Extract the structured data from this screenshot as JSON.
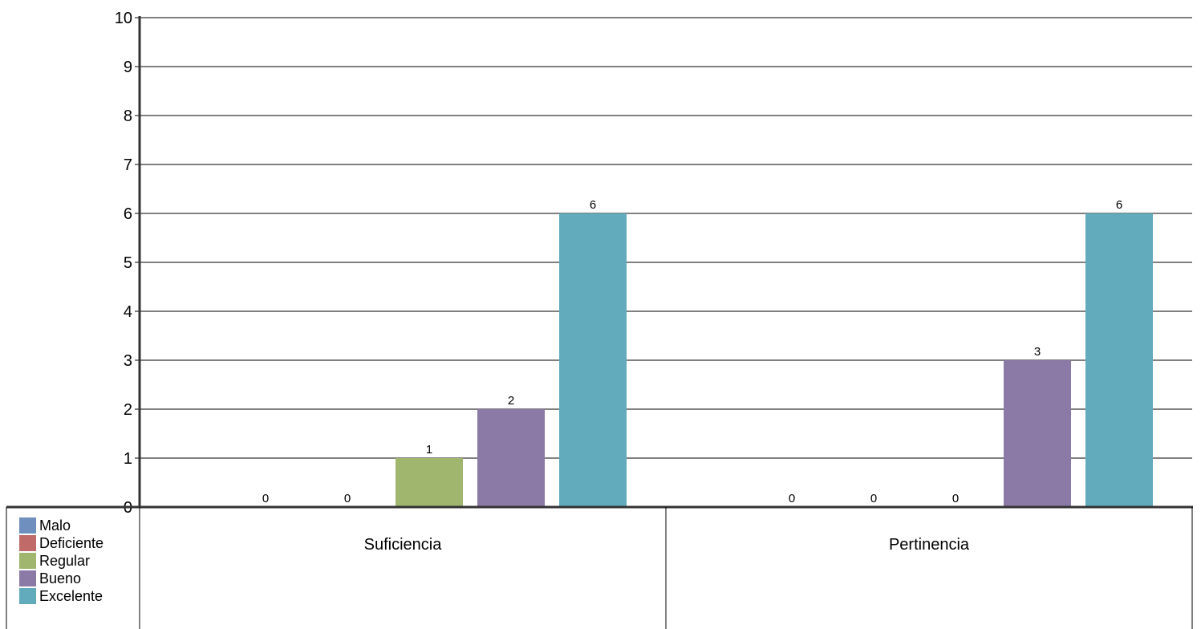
{
  "chart_data": {
    "type": "bar",
    "title": "",
    "xlabel": "",
    "ylabel": "",
    "ylim": [
      0,
      10
    ],
    "yticks": [
      0,
      1,
      2,
      3,
      4,
      5,
      6,
      7,
      8,
      9,
      10
    ],
    "grid": true,
    "legend_position": "bottom-left",
    "categories": [
      "Suficiencia",
      "Pertinencia"
    ],
    "series": [
      {
        "name": "Malo",
        "color": "#6f8fbf",
        "values": [
          0,
          0
        ]
      },
      {
        "name": "Deficiente",
        "color": "#c06b69",
        "values": [
          0,
          0
        ]
      },
      {
        "name": "Regular",
        "color": "#a0b66f",
        "values": [
          1,
          0
        ]
      },
      {
        "name": "Bueno",
        "color": "#8b79a6",
        "values": [
          2,
          3
        ]
      },
      {
        "name": "Excelente",
        "color": "#62abbd",
        "values": [
          6,
          6
        ]
      }
    ]
  }
}
